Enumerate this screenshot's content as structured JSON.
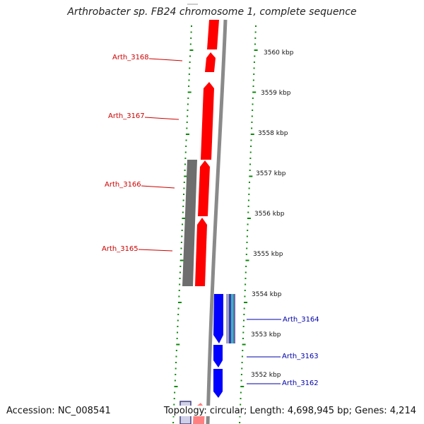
{
  "title": "Arthrobacter sp. FB24 chromosome 1, complete sequence",
  "accession": "Accession: NC_008541",
  "summary": "Topology: circular; Length: 4,698,945 bp; Genes: 4,214",
  "colors": {
    "forward_gene": "#ff0000",
    "reverse_gene": "#0000ff",
    "pseudo_gene": "#6e6e6e",
    "backbone": "#8a8a8a",
    "tick": "#0a8a0a",
    "forward_label": "#cc0000",
    "reverse_label": "#0000aa"
  },
  "scale_labels": [
    "3560 kbp",
    "3559 kbp",
    "3558 kbp",
    "3557 kbp",
    "3556 kbp",
    "3555 kbp",
    "3554 kbp",
    "3553 kbp",
    "3552 kbp"
  ],
  "genes": [
    {
      "label": "Arth_3168",
      "strand": "forward"
    },
    {
      "label": "Arth_3167",
      "strand": "forward"
    },
    {
      "label": "Arth_3166",
      "strand": "forward"
    },
    {
      "label": "Arth_3165",
      "strand": "forward"
    },
    {
      "label": "Arth_3164",
      "strand": "reverse"
    },
    {
      "label": "Arth_3163",
      "strand": "reverse"
    },
    {
      "label": "Arth_3162",
      "strand": "reverse"
    }
  ]
}
